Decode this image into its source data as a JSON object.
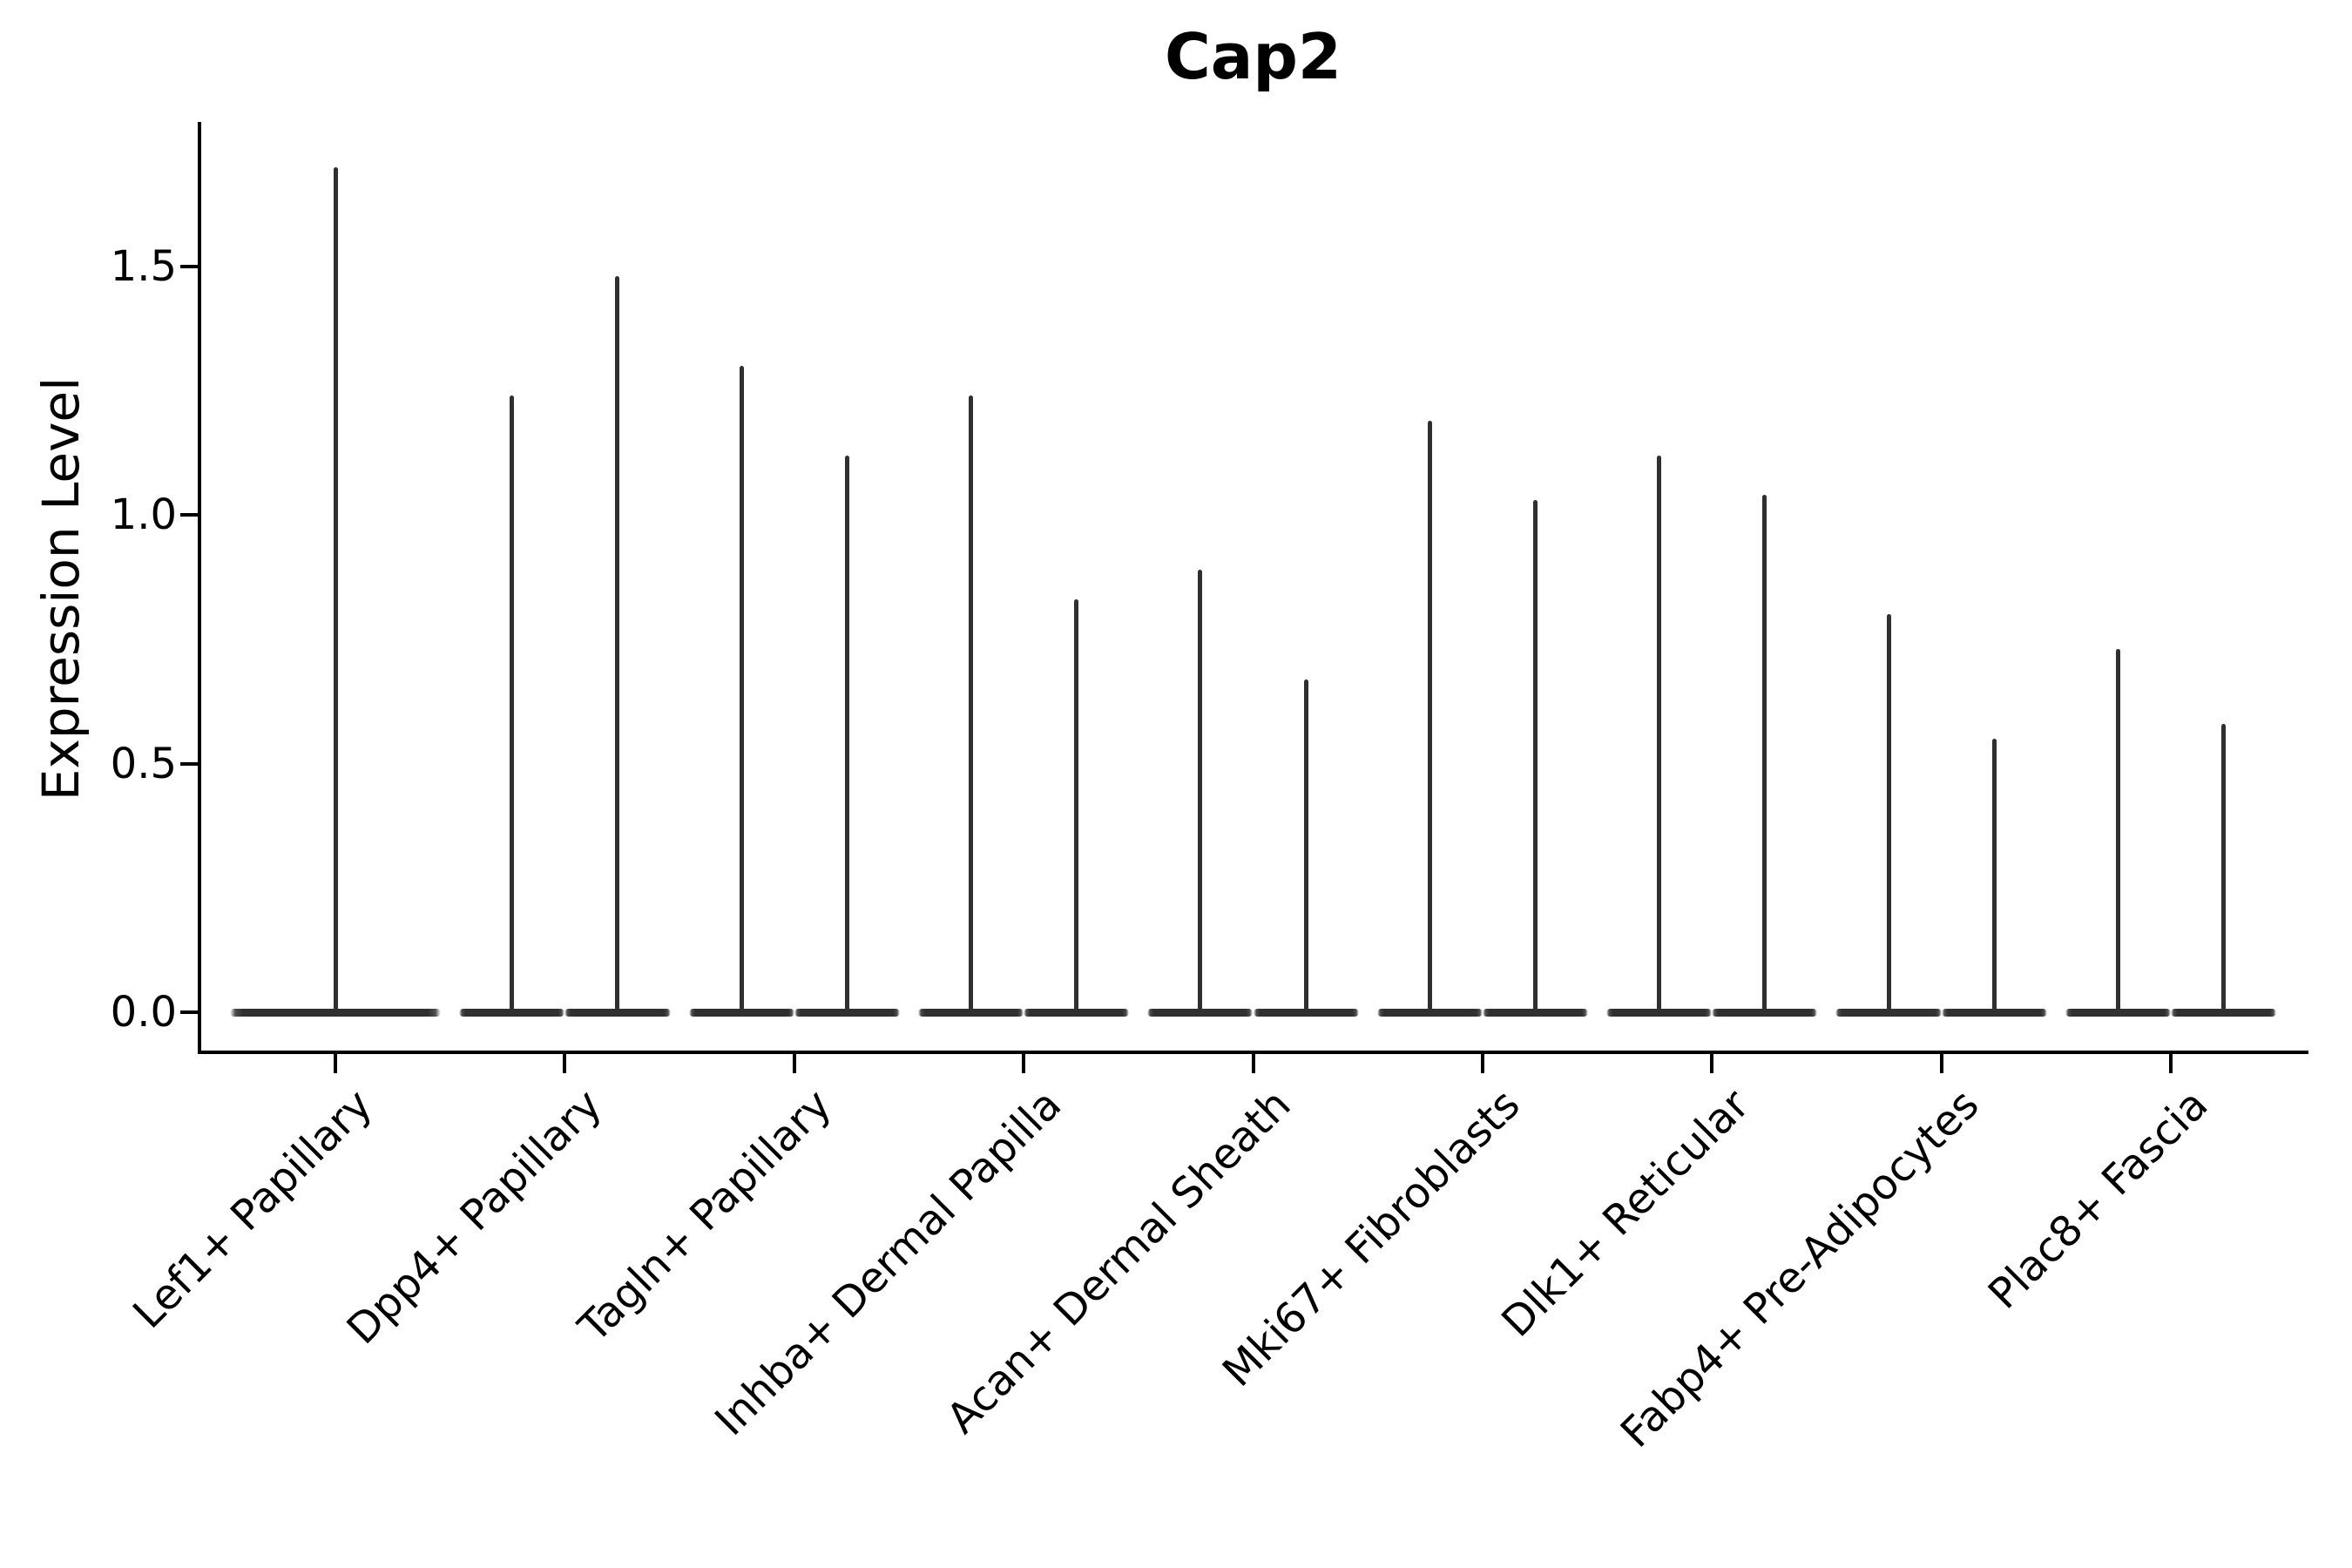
{
  "figure": {
    "background": "#ffffff",
    "axis_color": "#000000",
    "violin_color": "#303030"
  },
  "chart_data": {
    "type": "violin",
    "title": "Cap2",
    "xlabel": "",
    "ylabel": "Expression Level",
    "yticks": [
      "0.0",
      "0.5",
      "1.0",
      "1.5"
    ],
    "ylim": [
      -0.09,
      1.79
    ],
    "grid": false,
    "legend": "none",
    "baseline_value": 0.0,
    "categories": [
      "Lef1+ Papillary",
      "Dpp4+ Papillary",
      "Tagln+ Papillary",
      "Inhba+ Dermal Papilla",
      "Acan+ Dermal Sheath",
      "Mki67+ Fibroblasts",
      "Dlk1+ Reticular",
      "Fabp4+ Pre-Adipocytes",
      "Plac8+ Fascia"
    ],
    "violins": [
      {
        "category": "Lef1+ Papillary",
        "max_values": [
          1.7
        ]
      },
      {
        "category": "Dpp4+ Papillary",
        "max_values": [
          1.24,
          1.48
        ]
      },
      {
        "category": "Tagln+ Papillary",
        "max_values": [
          1.3,
          1.12
        ]
      },
      {
        "category": "Inhba+ Dermal Papilla",
        "max_values": [
          1.24,
          0.83
        ]
      },
      {
        "category": "Acan+ Dermal Sheath",
        "max_values": [
          0.89,
          0.67
        ]
      },
      {
        "category": "Mki67+ Fibroblasts",
        "max_values": [
          1.19,
          1.03
        ]
      },
      {
        "category": "Dlk1+ Reticular",
        "max_values": [
          1.12,
          1.04
        ]
      },
      {
        "category": "Fabp4+ Pre-Adipocytes",
        "max_values": [
          0.8,
          0.55
        ]
      },
      {
        "category": "Plac8+ Fascia",
        "max_values": [
          0.73,
          0.58
        ]
      }
    ]
  }
}
